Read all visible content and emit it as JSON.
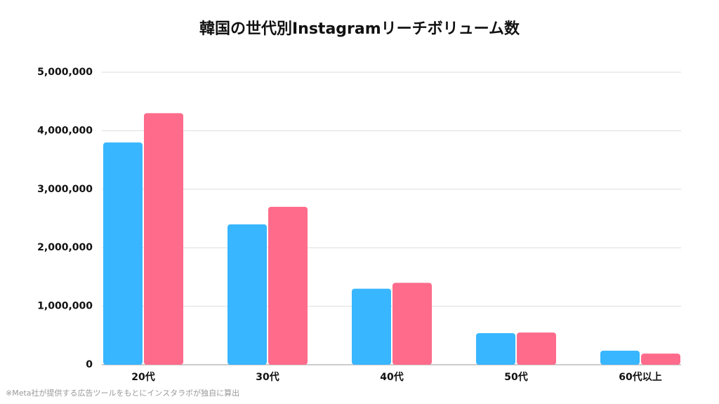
{
  "chart_data": {
    "type": "bar",
    "title": "韓国の世代別Instagramリーチボリューム数",
    "categories": [
      "20代",
      "30代",
      "40代",
      "50代",
      "60代以上"
    ],
    "series": [
      {
        "color": "#38b6ff",
        "values": [
          3800000,
          2400000,
          1300000,
          540000,
          240000
        ]
      },
      {
        "color": "#ff6b8b",
        "values": [
          4300000,
          2700000,
          1400000,
          550000,
          190000
        ]
      }
    ],
    "ylim": [
      0,
      5000000
    ],
    "yticks": [
      0,
      {
        "value": 1000000,
        "label": "1,000,000"
      },
      {
        "value": 2000000,
        "label": "2,000,000"
      },
      {
        "value": 3000000,
        "label": "3,000,000"
      },
      {
        "value": 4000000,
        "label": "4,000,000"
      },
      {
        "value": 5000000,
        "label": "5,000,000"
      }
    ],
    "grid": true,
    "source": "※Meta社が提供する広告ツールをもとにインスタラボが独自に算出"
  }
}
